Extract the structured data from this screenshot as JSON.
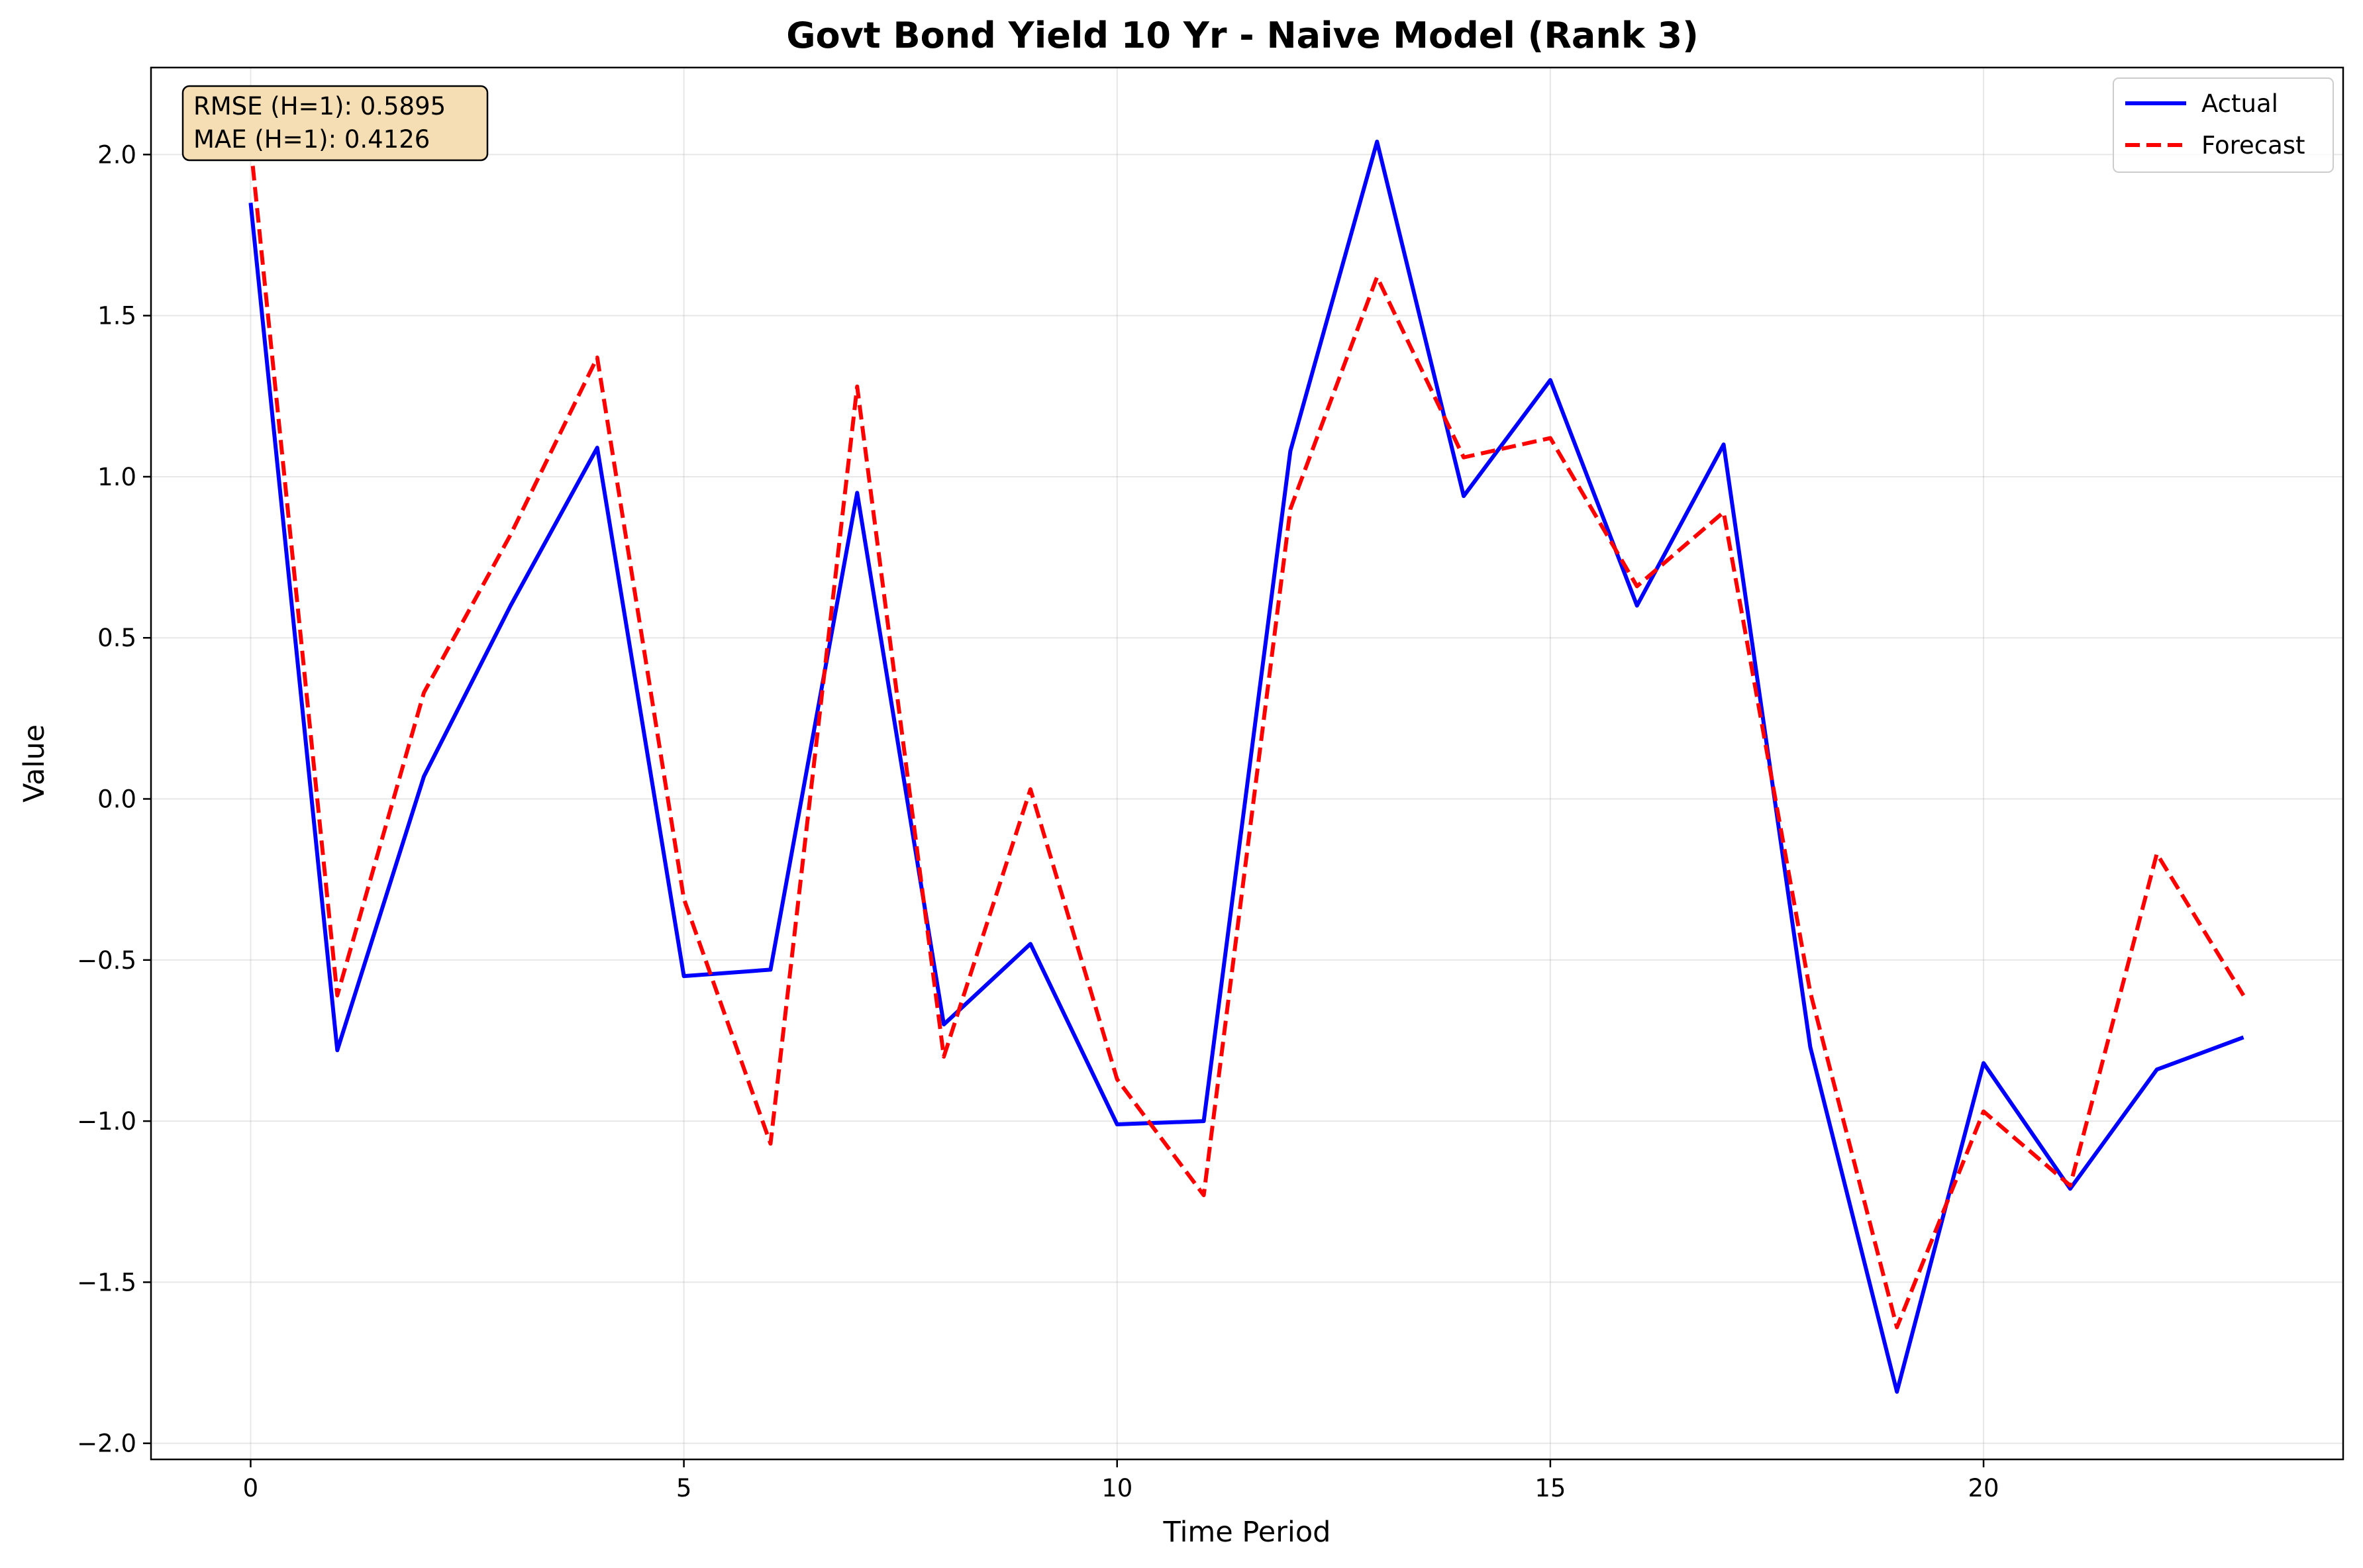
{
  "chart_data": {
    "type": "line",
    "title": "Govt Bond Yield 10 Yr - Naive Model (Rank 3)",
    "xlabel": "Time Period",
    "ylabel": "Value",
    "xlim": [
      -1.15,
      24.15
    ],
    "ylim": [
      -2.05,
      2.27
    ],
    "xticks": [
      0,
      5,
      10,
      15,
      20
    ],
    "xtick_labels": [
      "0",
      "5",
      "10",
      "15",
      "20"
    ],
    "yticks": [
      -2.0,
      -1.5,
      -1.0,
      -0.5,
      0.0,
      0.5,
      1.0,
      1.5,
      2.0
    ],
    "ytick_labels": [
      "−2.0",
      "−1.5",
      "−1.0",
      "−0.5",
      "0.0",
      "0.5",
      "1.0",
      "1.5",
      "2.0"
    ],
    "grid": true,
    "legend_position": "top-right",
    "x": [
      0,
      1,
      2,
      3,
      4,
      5,
      6,
      7,
      8,
      9,
      10,
      11,
      12,
      13,
      14,
      15,
      16,
      17,
      18,
      19,
      20,
      21,
      22,
      23
    ],
    "series": [
      {
        "name": "Actual",
        "color": "#0000ff",
        "style": "solid",
        "values": [
          1.85,
          -0.78,
          0.07,
          0.6,
          1.09,
          -0.55,
          -0.53,
          0.95,
          -0.7,
          -0.45,
          -1.01,
          -1.0,
          1.08,
          2.04,
          0.94,
          1.3,
          0.6,
          1.1,
          -0.77,
          -1.84,
          -0.82,
          -1.21,
          -0.84,
          -0.74
        ]
      },
      {
        "name": "Forecast",
        "color": "#ff0000",
        "style": "dashed",
        "values": [
          2.03,
          -0.61,
          0.33,
          0.82,
          1.37,
          -0.31,
          -1.07,
          1.28,
          -0.8,
          0.03,
          -0.87,
          -1.23,
          0.9,
          1.62,
          1.06,
          1.12,
          0.66,
          0.89,
          -0.6,
          -1.64,
          -0.97,
          -1.2,
          -0.17,
          -0.61
        ]
      }
    ],
    "annotation": {
      "lines": [
        "RMSE (H=1): 0.5895",
        "MAE (H=1): 0.4126"
      ],
      "background": "#f5deb3"
    }
  }
}
